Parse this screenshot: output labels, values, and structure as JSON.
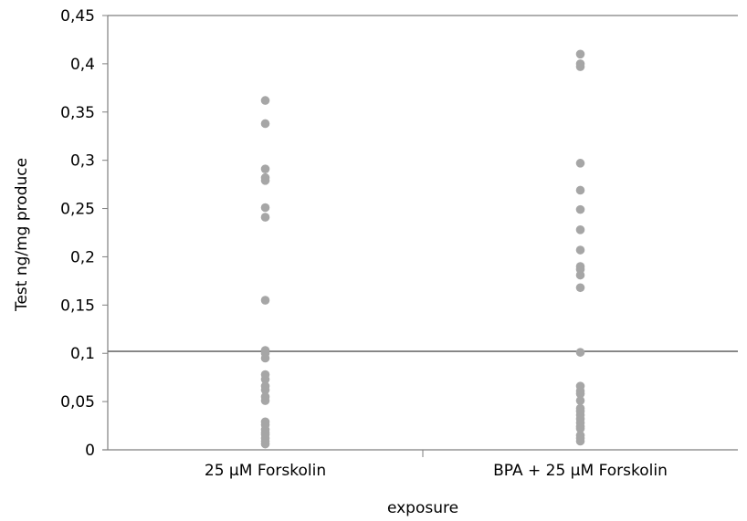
{
  "chart_data": {
    "type": "scatter",
    "title": "",
    "xlabel": "exposure",
    "ylabel": "Test ng/mg produce",
    "categories": [
      "25 µM Forskolin",
      "BPA + 25 µM Forskolin"
    ],
    "ylim": [
      0,
      0.45
    ],
    "yticks": [
      0,
      0.05,
      0.1,
      0.15,
      0.2,
      0.25,
      0.3,
      0.35,
      0.4,
      0.45
    ],
    "ytick_labels": [
      "0",
      "0,05",
      "0,1",
      "0,15",
      "0,2",
      "0,25",
      "0,3",
      "0,35",
      "0,4",
      "0,45"
    ],
    "reference_line": 0.102,
    "grid": false,
    "point_color": "#a6a6a6",
    "axis_color": "#7f7f7f",
    "series": [
      {
        "category": "25 µM Forskolin",
        "values": [
          0.362,
          0.338,
          0.291,
          0.282,
          0.279,
          0.251,
          0.241,
          0.155,
          0.103,
          0.1,
          0.095,
          0.078,
          0.073,
          0.066,
          0.062,
          0.055,
          0.051,
          0.029,
          0.026,
          0.021,
          0.018,
          0.016,
          0.012,
          0.009,
          0.006
        ]
      },
      {
        "category": "BPA + 25 µM Forskolin",
        "values": [
          0.41,
          0.4,
          0.397,
          0.297,
          0.269,
          0.249,
          0.228,
          0.207,
          0.19,
          0.187,
          0.181,
          0.168,
          0.101,
          0.066,
          0.061,
          0.058,
          0.051,
          0.043,
          0.04,
          0.036,
          0.032,
          0.028,
          0.024,
          0.022,
          0.015,
          0.012,
          0.009
        ]
      }
    ]
  }
}
